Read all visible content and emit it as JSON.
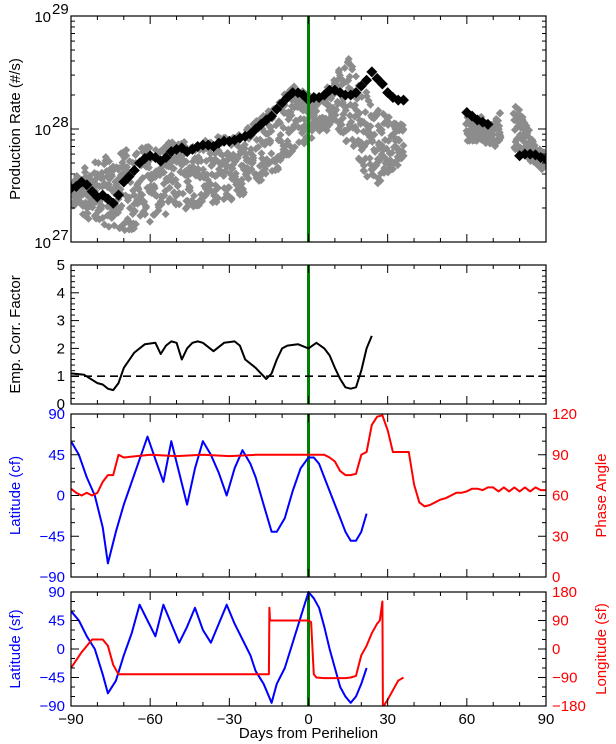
{
  "xaxis": {
    "label": "Days from Perihelion",
    "range": [
      -90,
      90
    ],
    "ticks": [
      -90,
      -60,
      -30,
      0,
      30,
      60,
      90
    ],
    "tick_labels": [
      "−90",
      "−60",
      "−30",
      "0",
      "30",
      "60",
      "90"
    ]
  },
  "colors": {
    "perihelion_line": "#008000",
    "gray_points": "#8c8c8c",
    "black_points": "#000000",
    "blue": "#0000ff",
    "red": "#ff0000"
  },
  "chart_data": [
    {
      "id": "production",
      "type": "scatter",
      "ylabel": "Production Rate (#/s)",
      "yscale": "log",
      "ylim": [
        1e+27,
        1e+29
      ],
      "y_tick_labels": [
        {
          "value": 1e+27,
          "base": "10",
          "exp": "27"
        },
        {
          "value": 1e+28,
          "base": "10",
          "exp": "28"
        },
        {
          "value": 1e+29,
          "base": "10",
          "exp": "29"
        }
      ],
      "perihelion_x": 0,
      "gray_band": {
        "x": [
          -90,
          -85,
          -80,
          -75,
          -70,
          -65,
          -60,
          -55,
          -50,
          -45,
          -40,
          -35,
          -30,
          -25,
          -20,
          -15,
          -10,
          -5,
          0,
          5,
          10,
          15,
          20,
          25,
          30,
          35,
          65,
          70,
          75,
          80,
          85,
          90
        ],
        "upper": [
          3.5e+27,
          4.5e+27,
          5.5e+27,
          6e+27,
          6.5e+27,
          7e+27,
          7.5e+27,
          7.5e+27,
          8e+27,
          8e+27,
          8e+27,
          8.5e+27,
          9e+27,
          1e+28,
          1.2e+28,
          1.6e+28,
          2e+28,
          2.4e+28,
          2e+28,
          1.9e+28,
          3.2e+28,
          4.4e+28,
          2.6e+28,
          1.6e+28,
          1.3e+28,
          1.2e+28,
          1.3e+28,
          1.1e+28,
          1.9e+28,
          1.5e+28,
          8e+27,
          6e+27
        ],
        "lower": [
          2e+27,
          1.7e+27,
          1.4e+27,
          1.3e+27,
          1.2e+27,
          1.3e+27,
          1.5e+27,
          1.7e+27,
          1.9e+27,
          2e+27,
          2.1e+27,
          2.2e+27,
          2.3e+27,
          2.6e+27,
          3.2e+27,
          3.8e+27,
          4.5e+27,
          6e+27,
          8e+27,
          9e+27,
          1e+28,
          7e+27,
          4.5e+27,
          3e+27,
          4e+27,
          5e+27,
          8e+27,
          7e+27,
          7e+27,
          6e+27,
          5e+27,
          4e+27
        ]
      },
      "gray_gaps": [
        [
          36,
          60
        ],
        [
          73,
          78
        ]
      ],
      "black_points": {
        "x": [
          -90,
          -88,
          -86,
          -84,
          -82,
          -80,
          -78,
          -76,
          -74,
          -72,
          -70,
          -68,
          -66,
          -64,
          -62,
          -60,
          -58,
          -56,
          -54,
          -52,
          -50,
          -48,
          -46,
          -44,
          -42,
          -40,
          -38,
          -36,
          -34,
          -32,
          -30,
          -28,
          -26,
          -24,
          -22,
          -20,
          -18,
          -16,
          -14,
          -12,
          -10,
          -8,
          -6,
          -4,
          -2,
          0,
          2,
          4,
          6,
          8,
          10,
          12,
          14,
          16,
          18,
          20,
          22,
          24,
          26,
          28,
          30,
          32,
          34,
          36,
          60,
          62,
          64,
          66,
          68,
          80,
          82,
          84,
          86,
          88,
          90
        ],
        "y": [
          3e+27,
          3.1e+27,
          3.4e+27,
          3.2e+27,
          2.8e+27,
          2.5e+27,
          2.6e+27,
          2.4e+27,
          2.2e+27,
          2.6e+27,
          3.4e+27,
          3.8e+27,
          4.3e+27,
          5e+27,
          5.5e+27,
          5.8e+27,
          5.6e+27,
          5.2e+27,
          5.6e+27,
          6.3e+27,
          6.6e+27,
          6.8e+27,
          6.3e+27,
          6.6e+27,
          7e+27,
          7.2e+27,
          7.2e+27,
          7e+27,
          7.5e+27,
          7.8e+27,
          7.8e+27,
          8e+27,
          8.3e+27,
          8.6e+27,
          9e+27,
          1e+28,
          1.1e+28,
          1.2e+28,
          1.3e+28,
          1.5e+28,
          1.7e+28,
          1.9e+28,
          2.1e+28,
          2.1e+28,
          2e+28,
          1.8e+28,
          1.9e+28,
          1.9e+28,
          2e+28,
          2.2e+28,
          2.2e+28,
          2.1e+28,
          2e+28,
          2e+28,
          2.1e+28,
          2.4e+28,
          2.7e+28,
          3.2e+28,
          2.8e+28,
          2.5e+28,
          2.1e+28,
          1.9e+28,
          1.8e+28,
          1.8e+28,
          1.4e+28,
          1.3e+28,
          1.2e+28,
          1.15e+28,
          1.1e+28,
          5.8e+27,
          6e+27,
          6e+27,
          5.9e+27,
          5.6e+27,
          5.4e+27
        ]
      }
    },
    {
      "id": "correction",
      "type": "line",
      "ylabel": "Emp. Corr. Factor",
      "ylim": [
        0,
        5
      ],
      "y_ticks": [
        0,
        1,
        2,
        3,
        4,
        5
      ],
      "reference_y": 1,
      "perihelion_x": 0,
      "series": [
        {
          "x": [
            -90,
            -85,
            -80,
            -78,
            -76,
            -74,
            -72,
            -70,
            -66,
            -62,
            -58,
            -56,
            -54,
            -52,
            -50,
            -48,
            -46,
            -44,
            -42,
            -40,
            -36,
            -32,
            -28,
            -26,
            -24,
            -20,
            -16,
            -14,
            -12,
            -10,
            -8,
            -4,
            0,
            3,
            6,
            8,
            10,
            12,
            14,
            16,
            18,
            20,
            22,
            24
          ],
          "y": [
            1.1,
            1.05,
            0.75,
            0.7,
            0.55,
            0.5,
            0.75,
            1.3,
            1.85,
            2.15,
            2.2,
            1.8,
            2.1,
            2.25,
            2.2,
            1.6,
            2.0,
            2.2,
            2.25,
            2.2,
            1.9,
            2.2,
            2.25,
            2.1,
            1.6,
            1.3,
            0.9,
            1.1,
            1.6,
            2.0,
            2.1,
            2.15,
            2.0,
            2.2,
            2.0,
            1.75,
            1.3,
            0.9,
            0.6,
            0.55,
            0.6,
            1.2,
            2.0,
            2.45
          ]
        }
      ]
    },
    {
      "id": "lat_cf_phase",
      "type": "line",
      "ylabel_left": "Latitude (cf)",
      "ylabel_right": "Phase Angle",
      "ylim_left": [
        -90,
        90
      ],
      "ylim_right": [
        0,
        120
      ],
      "y_ticks_left": [
        -90,
        -45,
        0,
        45,
        90
      ],
      "y_tick_labels_left": [
        "−90",
        "−45",
        "0",
        "45",
        "90"
      ],
      "y_ticks_right": [
        0,
        30,
        60,
        90,
        120
      ],
      "y_tick_labels_right": [
        "0",
        "30",
        "60",
        "90",
        "120"
      ],
      "perihelion_x": 0,
      "series": [
        {
          "axis": "left",
          "color": "blue",
          "x": [
            -90,
            -87,
            -84,
            -81,
            -78,
            -76,
            -73,
            -70,
            -67,
            -64,
            -61,
            -58,
            -55,
            -52,
            -49,
            -46,
            -43,
            -40,
            -37,
            -34,
            -31,
            -28,
            -25,
            -22,
            -20,
            -17,
            -14,
            -12,
            -9,
            -6,
            -3,
            0,
            2,
            4,
            6,
            8,
            10,
            12,
            14,
            16,
            18,
            20,
            22
          ],
          "y": [
            60,
            45,
            20,
            0,
            -35,
            -75,
            -40,
            -10,
            15,
            40,
            65,
            40,
            15,
            60,
            25,
            -10,
            30,
            60,
            45,
            25,
            0,
            30,
            50,
            35,
            20,
            -10,
            -40,
            -40,
            -25,
            5,
            30,
            42,
            42,
            35,
            20,
            5,
            -10,
            -25,
            -40,
            -50,
            -50,
            -40,
            -20
          ]
        },
        {
          "axis": "right",
          "color": "red",
          "x": [
            -90,
            -88,
            -86,
            -84,
            -82,
            -80,
            -78,
            -76,
            -74,
            -72,
            -70,
            -60,
            -50,
            -40,
            -30,
            -20,
            -10,
            0,
            6,
            8,
            10,
            12,
            14,
            16,
            18,
            20,
            22,
            24,
            26,
            28,
            30,
            32,
            34,
            36,
            38,
            40,
            42,
            44,
            46,
            48,
            50,
            52,
            54,
            56,
            58,
            60,
            62,
            64,
            66,
            68,
            70,
            72,
            74,
            76,
            78,
            80,
            82,
            84,
            86,
            88,
            90
          ],
          "y": [
            65,
            62,
            60,
            62,
            60,
            62,
            70,
            75,
            75,
            90,
            88,
            90,
            89,
            90,
            89,
            90,
            90,
            90,
            90,
            88,
            85,
            78,
            75,
            75,
            76,
            90,
            92,
            112,
            118,
            119,
            108,
            92,
            92,
            92,
            92,
            68,
            55,
            52,
            53,
            55,
            57,
            58,
            60,
            62,
            62,
            63,
            65,
            65,
            64,
            66,
            66,
            63,
            66,
            63,
            66,
            63,
            66,
            63,
            66,
            64,
            64
          ]
        }
      ]
    },
    {
      "id": "lat_sf_longitude",
      "type": "line",
      "xlabel": "Days from Perihelion",
      "ylabel_left": "Latitude (sf)",
      "ylabel_right": "Longitude (sf)",
      "ylim_left": [
        -90,
        90
      ],
      "ylim_right": [
        -180,
        180
      ],
      "y_ticks_left": [
        -90,
        -45,
        0,
        45,
        90
      ],
      "y_tick_labels_left": [
        "−90",
        "−45",
        "0",
        "45",
        "90"
      ],
      "y_ticks_right": [
        -180,
        -90,
        0,
        90,
        180
      ],
      "y_tick_labels_right": [
        "−180",
        "−90",
        "0",
        "90",
        "180"
      ],
      "perihelion_x": 0,
      "series": [
        {
          "axis": "left",
          "color": "blue",
          "x": [
            -90,
            -87,
            -84,
            -81,
            -78,
            -76,
            -73,
            -70,
            -67,
            -64,
            -61,
            -58,
            -55,
            -52,
            -49,
            -46,
            -43,
            -40,
            -37,
            -34,
            -31,
            -28,
            -25,
            -22,
            -20,
            -17,
            -14,
            -12,
            -9,
            -6,
            -3,
            0,
            2,
            4,
            6,
            8,
            10,
            12,
            14,
            16,
            18,
            20,
            22
          ],
          "y": [
            60,
            45,
            20,
            0,
            -40,
            -70,
            -50,
            -10,
            25,
            70,
            45,
            20,
            70,
            40,
            10,
            35,
            65,
            30,
            10,
            40,
            70,
            40,
            15,
            -10,
            -35,
            -55,
            -85,
            -55,
            -30,
            10,
            50,
            90,
            80,
            65,
            35,
            0,
            -30,
            -60,
            -75,
            -85,
            -75,
            -55,
            -30
          ]
        },
        {
          "axis": "right",
          "color": "red",
          "x": [
            -90,
            -86,
            -82,
            -80,
            -78,
            -76,
            -74,
            -72,
            -60,
            -50,
            -40,
            -30,
            -20,
            -15,
            -14.8,
            -14.6,
            0,
            1,
            2,
            3,
            6,
            10,
            14,
            16,
            18,
            20,
            22,
            24,
            26,
            27,
            28,
            28.2
          ],
          "y": [
            -60,
            -10,
            30,
            30,
            30,
            10,
            -50,
            -80,
            -80,
            -80,
            -80,
            -80,
            -80,
            -80,
            130,
            90,
            90,
            85,
            -80,
            -90,
            -92,
            -92,
            -92,
            -90,
            -85,
            -20,
            10,
            50,
            80,
            90,
            150,
            -180
          ]
        },
        {
          "axis": "right",
          "color": "red",
          "x": [
            28.5,
            30,
            32,
            34,
            36
          ],
          "y": [
            -180,
            -160,
            -130,
            -100,
            -90
          ]
        }
      ]
    }
  ]
}
